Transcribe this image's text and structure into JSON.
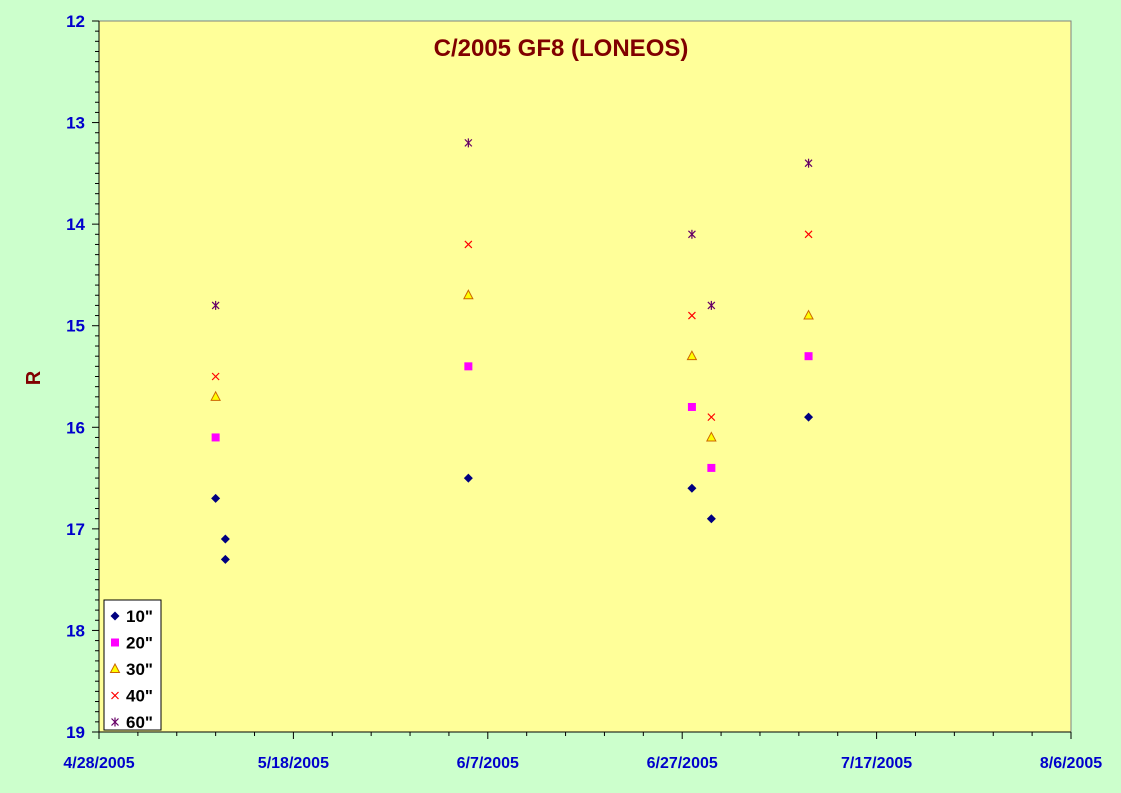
{
  "chart_data": {
    "type": "scatter",
    "title": "C/2005 GF8 (LONEOS)",
    "xlabel": "",
    "ylabel": "R",
    "x_axis": {
      "kind": "date",
      "range": [
        "2005-04-28",
        "2005-08-06"
      ],
      "tick_labels": [
        "4/28/2005",
        "5/18/2005",
        "6/7/2005",
        "6/27/2005",
        "7/17/2005",
        "8/6/2005"
      ]
    },
    "y_axis": {
      "range": [
        12,
        19
      ],
      "reversed": true,
      "tick_labels": [
        "12",
        "13",
        "14",
        "15",
        "16",
        "17",
        "18",
        "19"
      ]
    },
    "grid": false,
    "legend_position": "bottom-left",
    "series": [
      {
        "name": "10\"",
        "marker": "diamond",
        "color": "#000080",
        "points": [
          {
            "x": "2005-05-10",
            "y": 16.7
          },
          {
            "x": "2005-05-11",
            "y": 17.3
          },
          {
            "x": "2005-05-11",
            "y": 17.1
          },
          {
            "x": "2005-06-05",
            "y": 16.5
          },
          {
            "x": "2005-06-28",
            "y": 16.6
          },
          {
            "x": "2005-06-30",
            "y": 16.9
          },
          {
            "x": "2005-07-10",
            "y": 15.9
          }
        ]
      },
      {
        "name": "20\"",
        "marker": "square",
        "color": "#ff00ff",
        "points": [
          {
            "x": "2005-05-10",
            "y": 16.1
          },
          {
            "x": "2005-06-05",
            "y": 15.4
          },
          {
            "x": "2005-06-28",
            "y": 15.8
          },
          {
            "x": "2005-06-30",
            "y": 16.4
          },
          {
            "x": "2005-07-10",
            "y": 15.3
          }
        ]
      },
      {
        "name": "30\"",
        "marker": "triangle",
        "color": "#ffff00",
        "stroke": "#cc6600",
        "points": [
          {
            "x": "2005-05-10",
            "y": 15.7
          },
          {
            "x": "2005-06-05",
            "y": 14.7
          },
          {
            "x": "2005-06-28",
            "y": 15.3
          },
          {
            "x": "2005-06-30",
            "y": 16.1
          },
          {
            "x": "2005-07-10",
            "y": 14.9
          }
        ]
      },
      {
        "name": "40\"",
        "marker": "x",
        "color": "#ff0000",
        "points": [
          {
            "x": "2005-05-10",
            "y": 15.5
          },
          {
            "x": "2005-06-05",
            "y": 14.2
          },
          {
            "x": "2005-06-28",
            "y": 14.9
          },
          {
            "x": "2005-06-30",
            "y": 15.9
          },
          {
            "x": "2005-07-10",
            "y": 14.1
          }
        ]
      },
      {
        "name": "60\"",
        "marker": "asterisk",
        "color": "#660066",
        "points": [
          {
            "x": "2005-05-10",
            "y": 14.8
          },
          {
            "x": "2005-06-05",
            "y": 13.2
          },
          {
            "x": "2005-06-28",
            "y": 14.1
          },
          {
            "x": "2005-06-30",
            "y": 14.8
          },
          {
            "x": "2005-07-10",
            "y": 13.4
          }
        ]
      }
    ]
  },
  "colors": {
    "background": "#ccffcc",
    "plot_area": "#ffff99",
    "title": "#800000",
    "tick_labels": "#0000cc"
  }
}
